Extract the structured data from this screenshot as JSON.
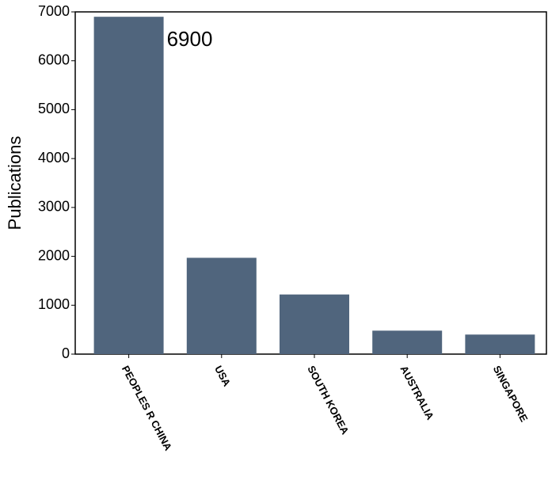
{
  "chart_data": {
    "type": "bar",
    "y_label": "Publications",
    "categories": [
      "PEOPLES R CHINA",
      "USA",
      "SOUTH KOREA",
      "AUSTRALIA",
      "SINGAPORE"
    ],
    "values": [
      6900,
      1970,
      1220,
      480,
      400
    ],
    "color": "#50657d",
    "ylim": [
      0,
      7000
    ],
    "yticks": [
      0,
      1000,
      2000,
      3000,
      4000,
      5000,
      6000,
      7000
    ],
    "grid": false
  }
}
